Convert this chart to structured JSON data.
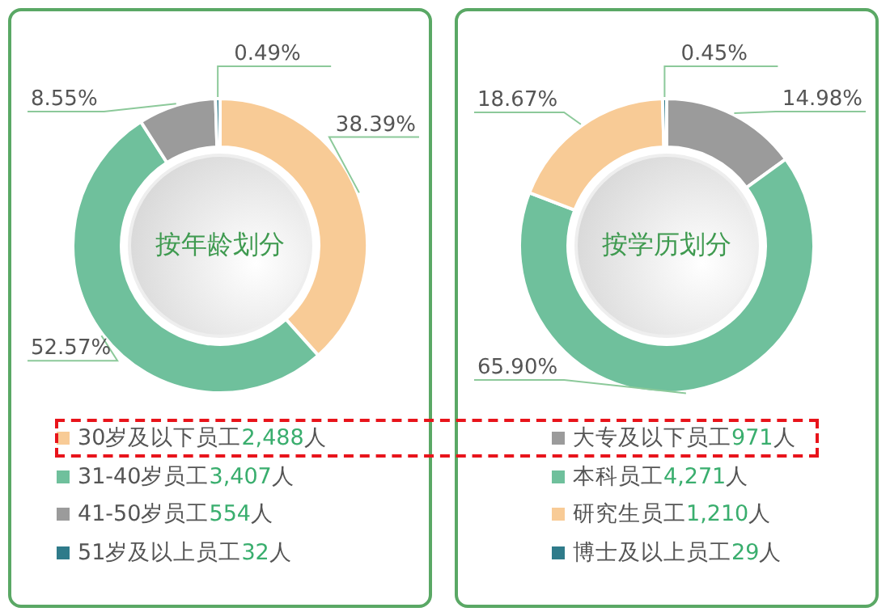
{
  "chart_data": [
    {
      "type": "donut",
      "title": "按年龄划分",
      "categories": [
        "30岁及以下员工2,488人",
        "31-40岁员工3,407人",
        "41-50岁员工554人",
        "51岁及以上员工32人"
      ],
      "values": [
        38.39,
        52.57,
        8.55,
        0.49
      ],
      "colors": [
        "#f8cb96",
        "#6fc09c",
        "#9b9b9b",
        "#2f7b8a"
      ],
      "value_labels": [
        "38.39%",
        "52.57%",
        "8.55%",
        "0.49%"
      ],
      "legend": "bottom"
    },
    {
      "type": "donut",
      "title": "按学历划分",
      "categories": [
        "大专及以下员工971人",
        "本科员工4,271人",
        "研究生员工1,210人",
        "博士及以上员工29人"
      ],
      "values": [
        14.98,
        65.9,
        18.67,
        0.45
      ],
      "colors": [
        "#9b9b9b",
        "#6fc09c",
        "#f8cb96",
        "#2f7b8a"
      ],
      "value_labels": [
        "14.98%",
        "65.90%",
        "18.67%",
        "0.45%"
      ],
      "legend": "bottom"
    }
  ]
}
